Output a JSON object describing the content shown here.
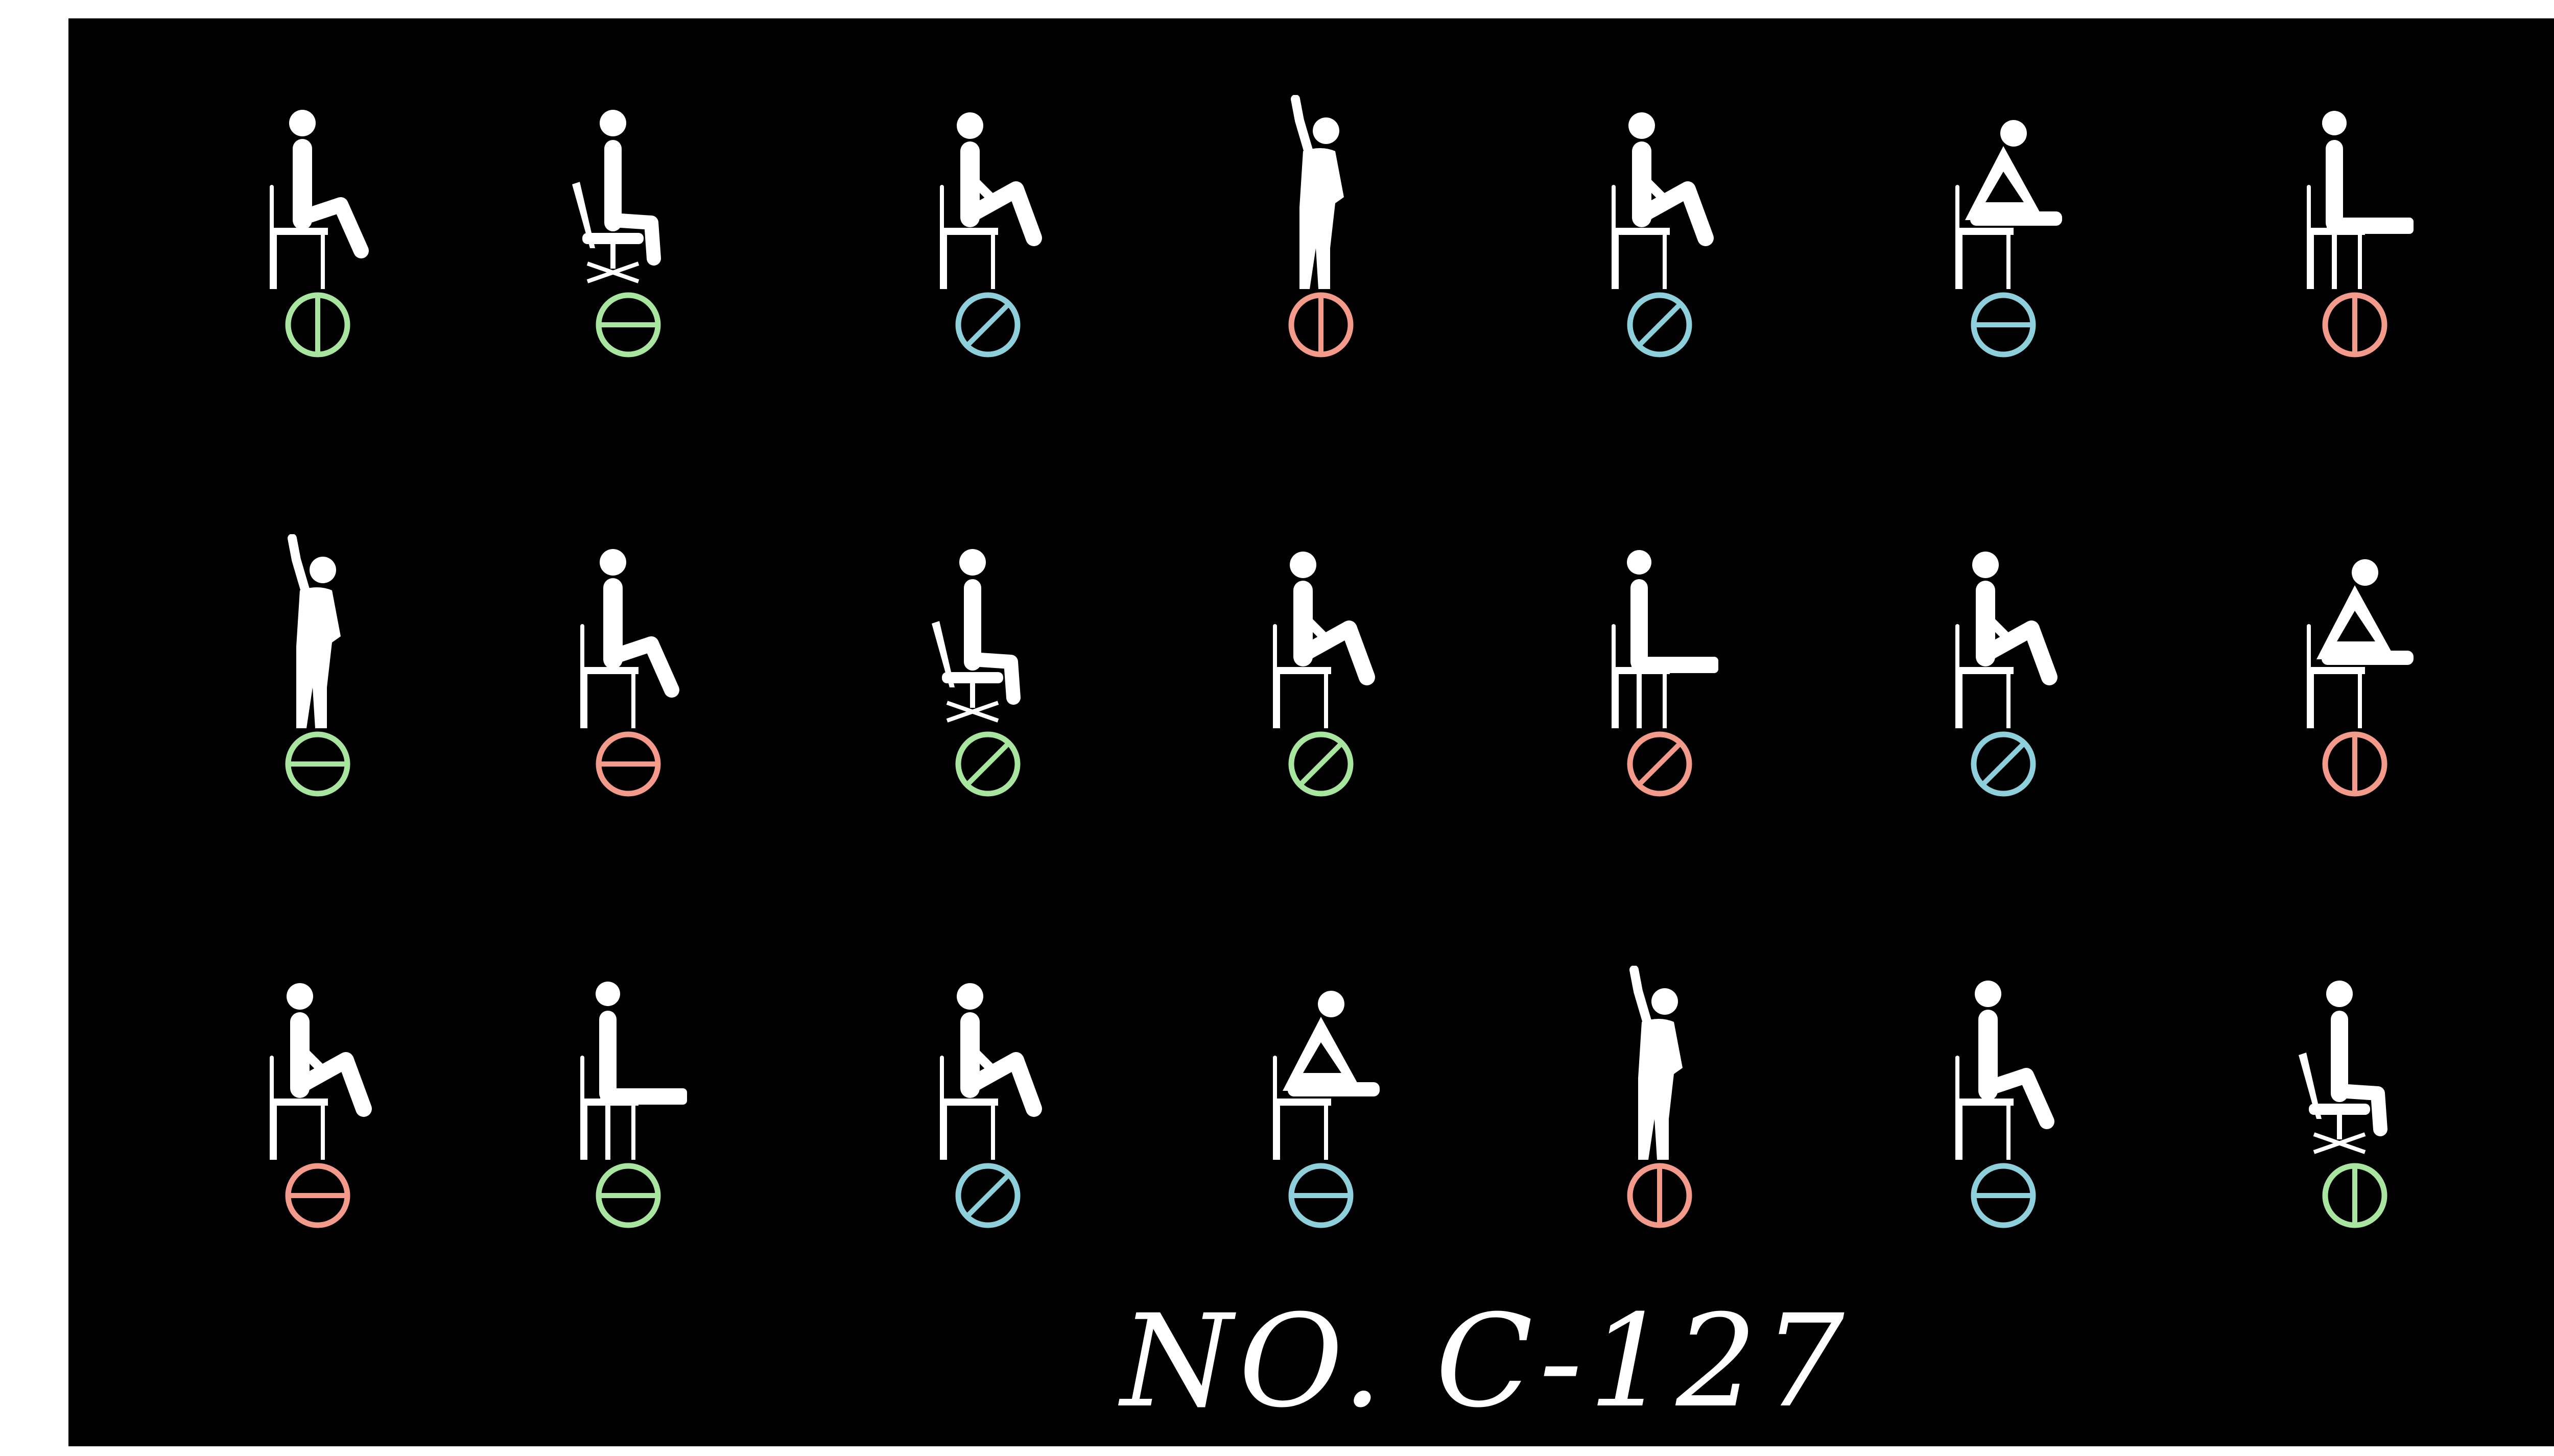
{
  "board": {
    "caption": "NO. C-127",
    "background": "#000000",
    "figure_color": "#ffffff",
    "palette": {
      "green": "#a8e6a0",
      "blue": "#8ecfdc",
      "red": "#f39a8a"
    },
    "rows": [
      [
        {
          "pose": "sit-leg-forward",
          "symbol": "vertical-bar",
          "color": "green"
        },
        {
          "pose": "office-chair",
          "symbol": "horizontal-bar",
          "color": "green"
        },
        {
          "pose": "sit-knees-up",
          "symbol": "slash",
          "color": "blue"
        },
        {
          "pose": "stand-hand-raised",
          "symbol": "vertical-bar",
          "color": "red"
        },
        {
          "pose": "sit-knees-up",
          "symbol": "slash",
          "color": "blue"
        },
        {
          "pose": "sit-leaning-forward",
          "symbol": "horizontal-bar",
          "color": "blue"
        },
        {
          "pose": "sit-legs-straight",
          "symbol": "vertical-bar",
          "color": "red"
        }
      ],
      [
        {
          "pose": "stand-hand-raised",
          "symbol": "horizontal-bar",
          "color": "green"
        },
        {
          "pose": "sit-leg-forward",
          "symbol": "horizontal-bar",
          "color": "red"
        },
        {
          "pose": "office-chair",
          "symbol": "slash",
          "color": "green"
        },
        {
          "pose": "sit-knees-up",
          "symbol": "slash",
          "color": "green"
        },
        {
          "pose": "sit-legs-straight",
          "symbol": "slash",
          "color": "red"
        },
        {
          "pose": "sit-knees-up",
          "symbol": "slash",
          "color": "blue"
        },
        {
          "pose": "sit-leaning-forward",
          "symbol": "vertical-bar",
          "color": "red"
        }
      ],
      [
        {
          "pose": "sit-knees-up",
          "symbol": "horizontal-bar",
          "color": "red"
        },
        {
          "pose": "sit-legs-straight",
          "symbol": "horizontal-bar",
          "color": "green"
        },
        {
          "pose": "sit-knees-up",
          "symbol": "slash",
          "color": "blue"
        },
        {
          "pose": "sit-leaning-forward",
          "symbol": "horizontal-bar",
          "color": "blue"
        },
        {
          "pose": "stand-hand-raised",
          "symbol": "vertical-bar",
          "color": "red"
        },
        {
          "pose": "sit-leg-forward",
          "symbol": "horizontal-bar",
          "color": "blue"
        },
        {
          "pose": "office-chair",
          "symbol": "vertical-bar",
          "color": "green"
        }
      ]
    ]
  }
}
